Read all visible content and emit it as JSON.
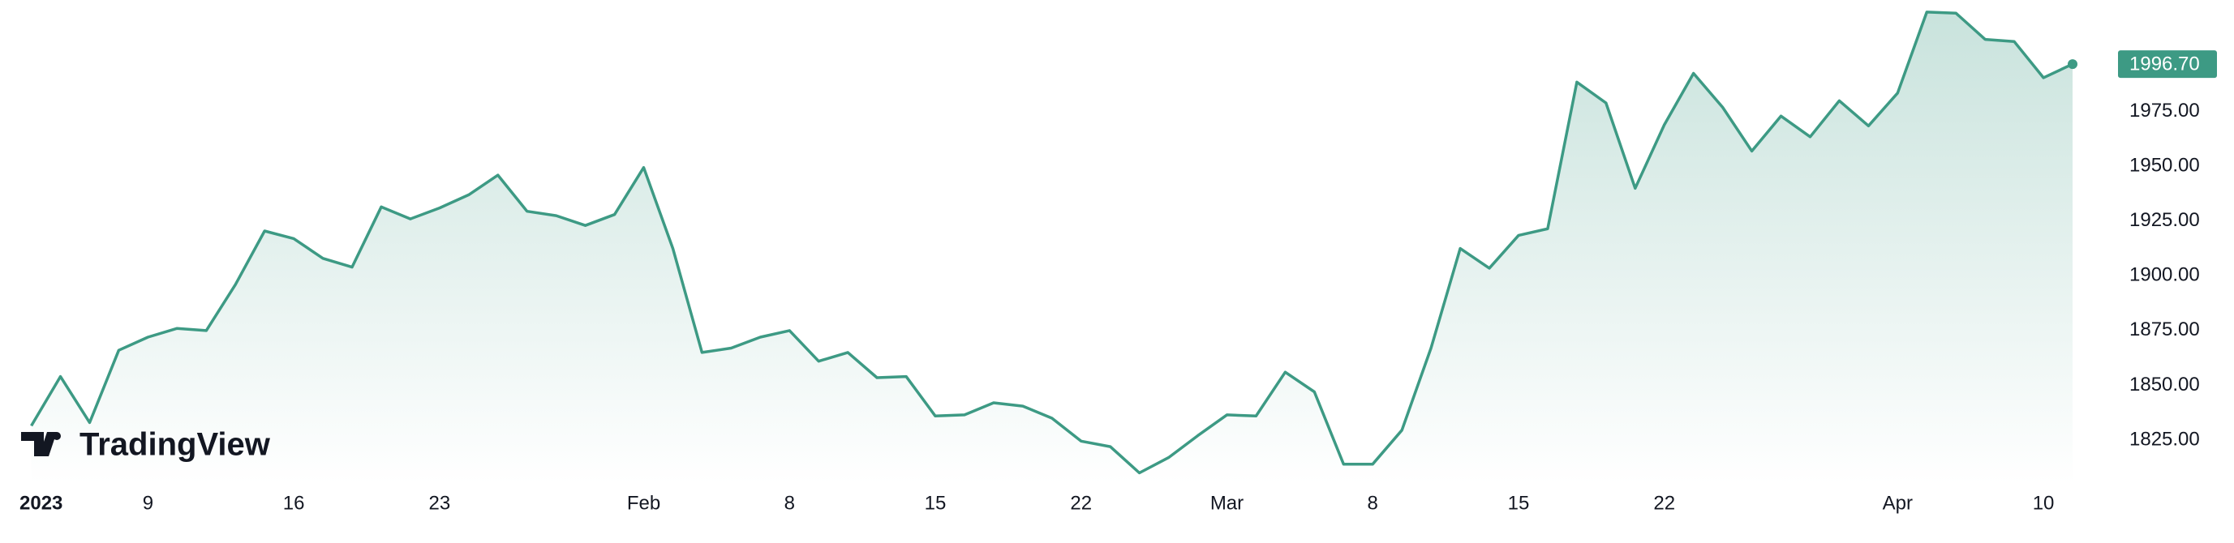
{
  "chart_data": {
    "type": "area",
    "watermark": "TradingView",
    "color": "#3d9a84",
    "categories": [
      "2023",
      null,
      null,
      null,
      "9",
      null,
      null,
      null,
      null,
      "16",
      null,
      null,
      null,
      null,
      "23",
      null,
      null,
      null,
      null,
      null,
      null,
      "Feb",
      null,
      null,
      null,
      null,
      "8",
      null,
      null,
      null,
      null,
      "15",
      null,
      null,
      null,
      null,
      "22",
      null,
      null,
      null,
      null,
      "Mar",
      null,
      null,
      null,
      null,
      "8",
      null,
      null,
      null,
      null,
      "15",
      null,
      null,
      null,
      null,
      "22",
      null,
      null,
      null,
      null,
      null,
      null,
      null,
      "Apr",
      null,
      null,
      null,
      null,
      "10",
      null
    ],
    "values": [
      1831.5,
      1854,
      1833,
      1866,
      1872,
      1876,
      1875,
      1896,
      1920.5,
      1917,
      1908,
      1904,
      1931.5,
      1926,
      1931,
      1937,
      1946,
      1929.5,
      1927.5,
      1923,
      1928,
      1949.5,
      1912.5,
      1865,
      1867,
      1872,
      1875,
      1861,
      1865,
      1853.5,
      1854,
      1836,
      1836.5,
      1842,
      1840.5,
      1835,
      1824.5,
      1822,
      1810,
      1817,
      1827,
      1836.5,
      1836,
      1856,
      1847,
      1814,
      1814,
      1829.5,
      1867,
      1912.5,
      1903.5,
      1918.5,
      1921.5,
      1988.5,
      1979,
      1940,
      1969,
      1992.5,
      1977,
      1957,
      1973,
      1963.5,
      1980,
      1968.5,
      1983.5,
      2020.5,
      2020,
      2008,
      2007,
      1990.5,
      1996.7
    ],
    "value_labels": [
      null,
      null,
      null,
      null,
      null,
      null,
      null,
      null,
      null,
      null,
      null,
      null,
      null,
      null,
      null,
      null,
      null,
      null,
      null,
      null,
      null,
      null,
      null,
      null,
      null,
      null,
      null,
      null,
      null,
      null,
      null,
      null,
      null,
      null,
      null,
      null,
      null,
      null,
      null,
      null,
      null,
      null,
      null,
      null,
      null,
      null,
      null,
      null,
      null,
      null,
      null,
      null,
      null,
      null,
      null,
      null,
      null,
      null,
      null,
      null,
      null,
      null,
      null,
      null,
      null,
      null,
      null,
      null,
      null,
      null,
      "1996.70"
    ],
    "ylim": [
      1805,
      2026
    ],
    "yticks": [
      {
        "value": 1825,
        "label": "1825.00"
      },
      {
        "value": 1850,
        "label": "1850.00"
      },
      {
        "value": 1875,
        "label": "1875.00"
      },
      {
        "value": 1900,
        "label": "1900.00"
      },
      {
        "value": 1925,
        "label": "1925.00"
      },
      {
        "value": 1950,
        "label": "1950.00"
      },
      {
        "value": 1975,
        "label": "1975.00"
      }
    ],
    "grid": false
  }
}
